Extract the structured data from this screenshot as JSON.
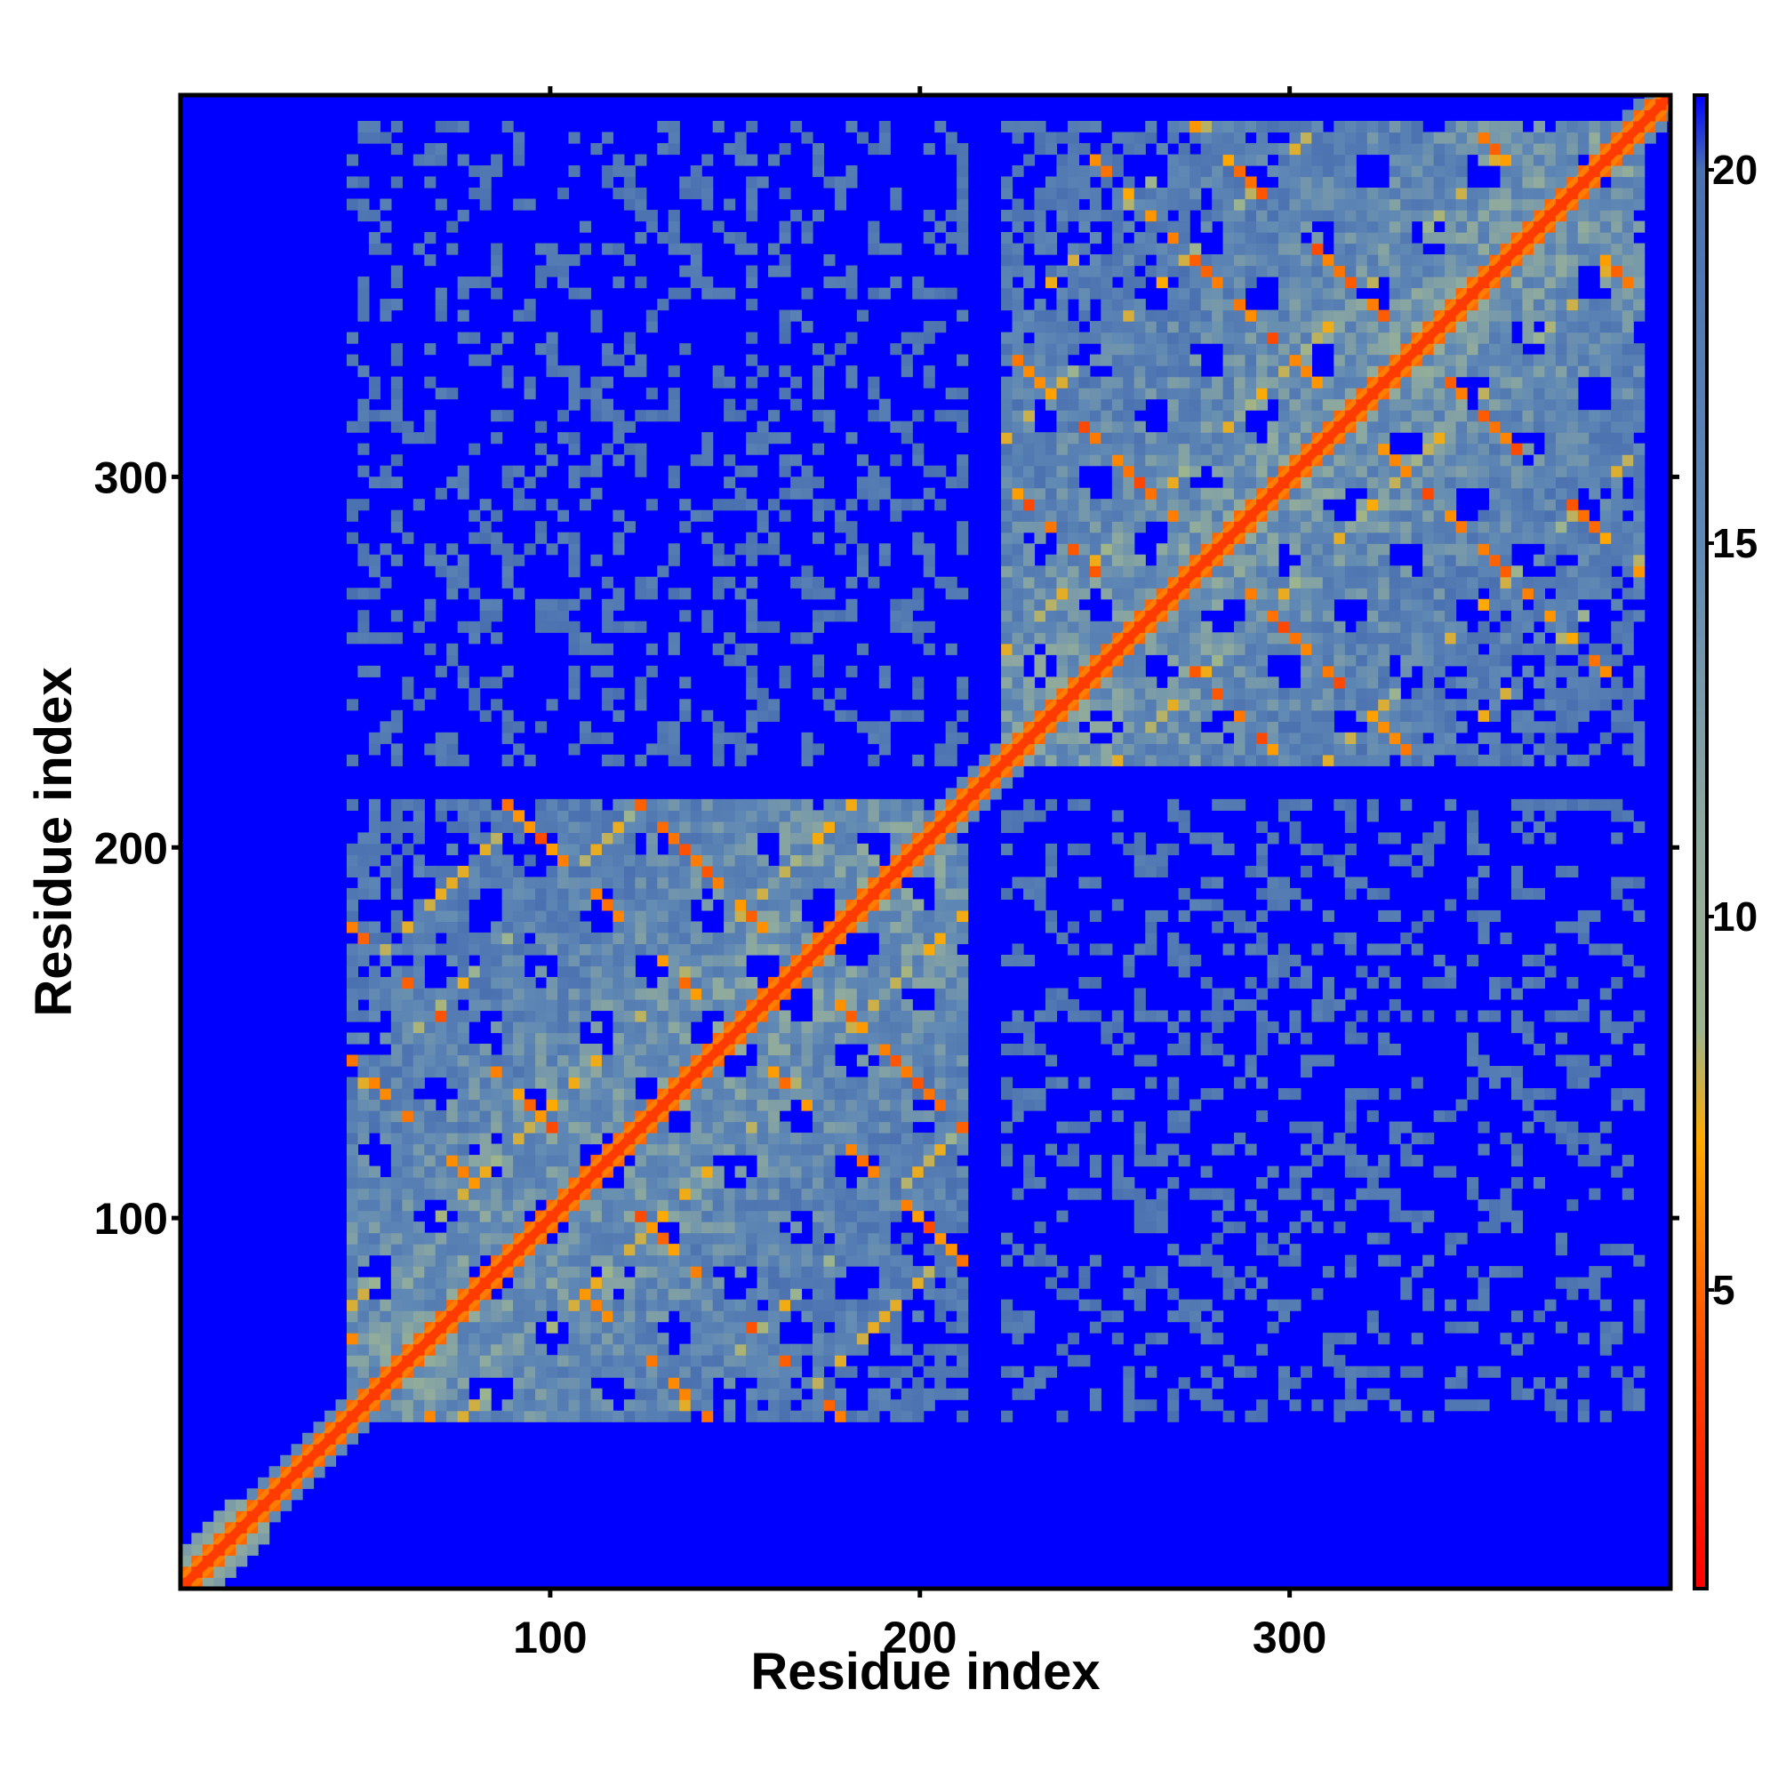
{
  "chart_data": {
    "type": "heatmap",
    "title": "",
    "xlabel": "Residue index",
    "ylabel": "Residue index",
    "n_residues": 403,
    "xlim": [
      0,
      403
    ],
    "ylim": [
      0,
      403
    ],
    "x_ticks": [
      100,
      200,
      300
    ],
    "y_ticks": [
      100,
      200,
      300
    ],
    "matrix": "symmetric pairwise residue distance map",
    "diagonal_value": 1,
    "domains": [
      {
        "start": 45,
        "end": 210,
        "description": "N-terminal domain, dense contact block"
      },
      {
        "start": 220,
        "end": 395,
        "description": "C-terminal domain, dense contact block"
      }
    ],
    "colorbar": {
      "range": [
        1,
        21
      ],
      "ticks": [
        5,
        10,
        15,
        20
      ],
      "colors": [
        {
          "value": 1,
          "color": "#ff0000"
        },
        {
          "value": 4,
          "color": "#ff4400"
        },
        {
          "value": 7,
          "color": "#ffaa00"
        },
        {
          "value": 8.5,
          "color": "#9cb58e"
        },
        {
          "value": 11,
          "color": "#8faa9e"
        },
        {
          "value": 15,
          "color": "#5f88b5"
        },
        {
          "value": 20,
          "color": "#4a70b0"
        },
        {
          "value": 21,
          "color": "#0000ff"
        }
      ],
      "cutoff_color": "#0000ff",
      "cutoff_value": 20
    }
  }
}
